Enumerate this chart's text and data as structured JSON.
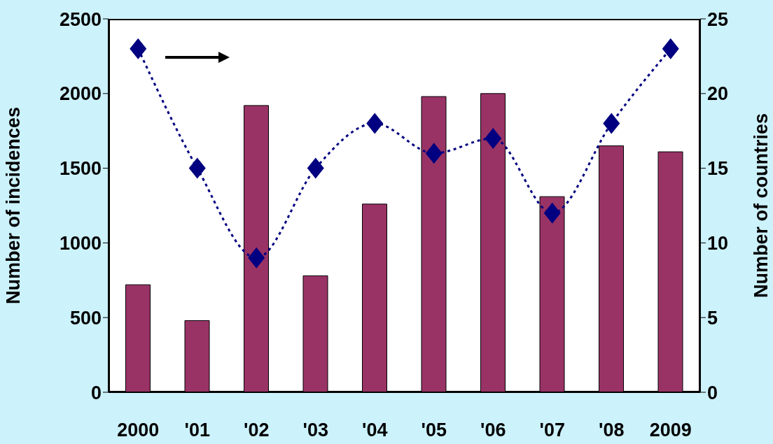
{
  "chart_data": {
    "type": "bar",
    "categories": [
      "2000",
      "'01",
      "'02",
      "'03",
      "'04",
      "'05",
      "'06",
      "'07",
      "'08",
      "2009"
    ],
    "ylabel": "Number of incidences",
    "y2label": "Number of countries",
    "ylim": [
      0,
      2500
    ],
    "yticks": [
      0,
      500,
      1000,
      1500,
      2000,
      2500
    ],
    "y2lim": [
      0,
      25
    ],
    "y2ticks": [
      0,
      5,
      10,
      15,
      20,
      25
    ],
    "marker": "diamond",
    "line_style": "dotted",
    "series": [
      {
        "color": "#993366",
        "values": [
          720,
          480,
          1920,
          780,
          1260,
          1980,
          2000,
          1310,
          1650,
          1610
        ]
      },
      {
        "type": "line",
        "axis": "y2",
        "color": "#000080",
        "values": [
          23,
          15,
          9,
          15,
          18,
          16,
          17,
          12,
          18,
          23
        ]
      }
    ]
  }
}
